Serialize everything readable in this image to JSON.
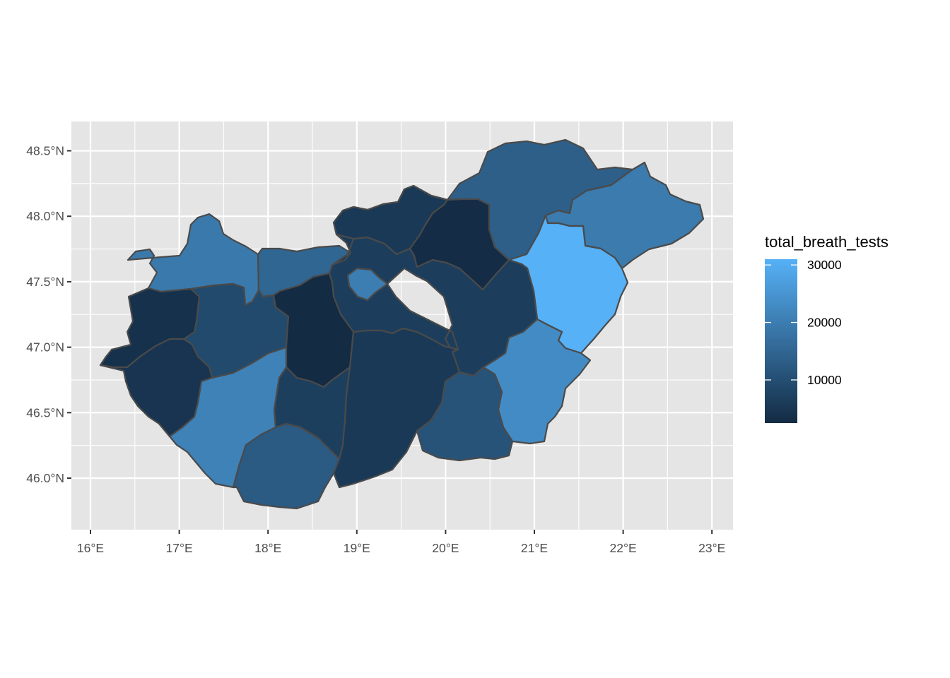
{
  "chart_data": {
    "type": "map",
    "title": "",
    "xlabel": "",
    "ylabel": "",
    "x_ticks": [
      "16°E",
      "17°E",
      "18°E",
      "19°E",
      "20°E",
      "21°E",
      "22°E",
      "23°E"
    ],
    "y_ticks": [
      "46.0°N",
      "46.5°N",
      "47.0°N",
      "47.5°N",
      "48.0°N",
      "48.5°N"
    ],
    "x_tick_values": [
      16,
      17,
      18,
      19,
      20,
      21,
      22,
      23
    ],
    "y_tick_values": [
      46.0,
      46.5,
      47.0,
      47.5,
      48.0,
      48.5
    ],
    "xlim": [
      15.78,
      23.23
    ],
    "ylim": [
      45.6,
      48.82
    ],
    "grid": true,
    "panel_background": "#e5e5e5",
    "legend": {
      "title": "total_breath_tests",
      "position": "right",
      "min": 2500,
      "max": 31000,
      "ticks": [
        10000,
        20000,
        30000
      ],
      "tick_labels": [
        "10000",
        "20000",
        "30000"
      ],
      "low_color": "#132b43",
      "high_color": "#56b1f7"
    },
    "regions": [
      {
        "id": "gyor-moson-sopron",
        "value": 19000
      },
      {
        "id": "komarom-esztergom",
        "value": 15000
      },
      {
        "id": "pest-north",
        "value": 6000
      },
      {
        "id": "nograd",
        "value": 5500
      },
      {
        "id": "borsod-abauj-zemplen",
        "value": 13500
      },
      {
        "id": "szabolcs-szatmar-bereg",
        "value": 19500
      },
      {
        "id": "heves",
        "value": 2800
      },
      {
        "id": "hajdu-bihar",
        "value": 31000
      },
      {
        "id": "vas",
        "value": 3800
      },
      {
        "id": "veszprem",
        "value": 9000
      },
      {
        "id": "fejer",
        "value": 2500
      },
      {
        "id": "budapest",
        "value": 20000
      },
      {
        "id": "pest-south",
        "value": 6500
      },
      {
        "id": "jasz-nagykun-szolnok",
        "value": 14000
      },
      {
        "id": "bekes",
        "value": 23000
      },
      {
        "id": "zala",
        "value": 4500
      },
      {
        "id": "somogy",
        "value": 21000
      },
      {
        "id": "tolna",
        "value": 6800
      },
      {
        "id": "baranya",
        "value": 12500
      },
      {
        "id": "bacs-kiskun",
        "value": 5500
      },
      {
        "id": "csongrad",
        "value": 11000
      }
    ]
  }
}
